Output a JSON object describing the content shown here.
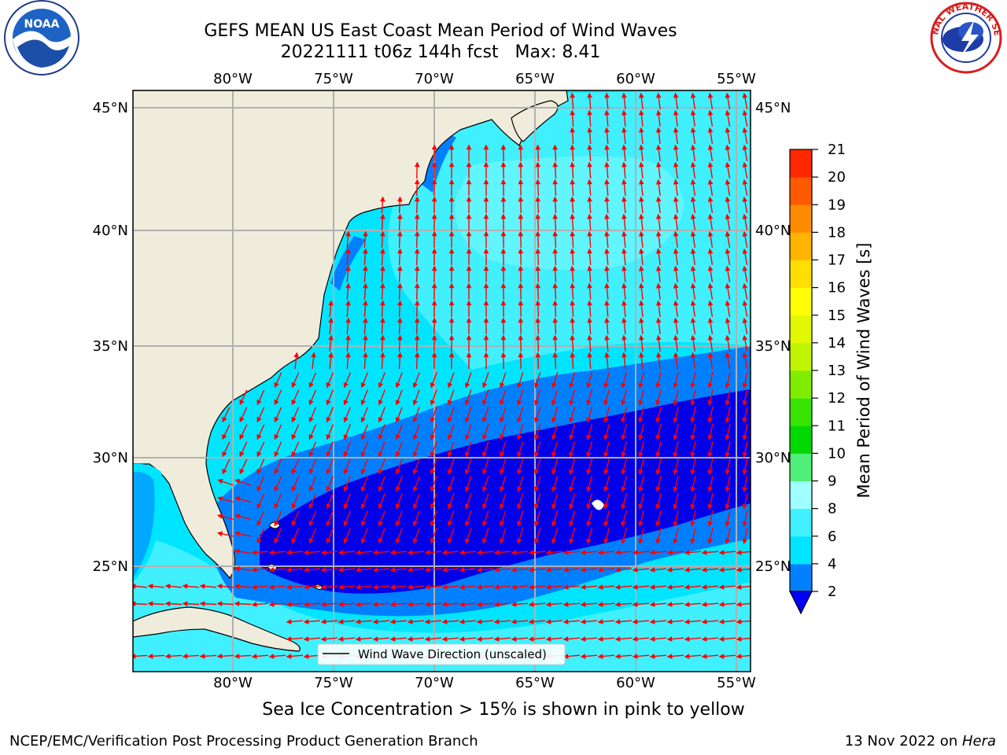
{
  "header": {
    "title_line1": "GEFS MEAN US East Coast Mean Period of Wind Waves",
    "title_line2": "20221111 t06z 144h fcst   Max: 8.41"
  },
  "logos": {
    "left_name": "NOAA",
    "right_name": "NATIONAL WEATHER SERVICE"
  },
  "map": {
    "lon_labels": [
      "80°W",
      "75°W",
      "70°W",
      "65°W",
      "60°W",
      "55°W"
    ],
    "lat_labels": [
      "45°N",
      "40°N",
      "35°N",
      "30°N",
      "25°N"
    ],
    "legend_label": "Wind Wave Direction (unscaled)",
    "land_color": "#efecdc",
    "coast_color": "#000000",
    "arrow_color": "#ff0000",
    "grid_color": "#b0b0b0"
  },
  "colorbar": {
    "label": "Mean Period of Wind Waves [s]",
    "ticks": [
      "2",
      "4",
      "6",
      "8",
      "9",
      "10",
      "11",
      "12",
      "13",
      "14",
      "15",
      "16",
      "17",
      "18",
      "19",
      "20",
      "21"
    ],
    "colors": [
      "#0080ff",
      "#00e5ff",
      "#40f0ff",
      "#a0ffff",
      "#50ef78",
      "#00d800",
      "#38e400",
      "#80ec00",
      "#c0f400",
      "#e2f800",
      "#ffff00",
      "#ffde00",
      "#ffb400",
      "#ff8c00",
      "#ff5a00",
      "#ff2800"
    ],
    "under_color": "#0000ff"
  },
  "field_colors": {
    "lt2": "#0000e8",
    "c2_4": "#0080ff",
    "c4_6": "#00e5ff",
    "c6_8": "#40f0ff",
    "c8_9": "#a0ffff"
  },
  "footer": {
    "subnote": "Sea Ice Concentration > 15% is shown in pink to yellow",
    "left": "NCEP/EMC/Verification Post Processing Product Generation Branch",
    "right_prefix": "13 Nov 2022 on ",
    "right_machine": "Hera"
  }
}
